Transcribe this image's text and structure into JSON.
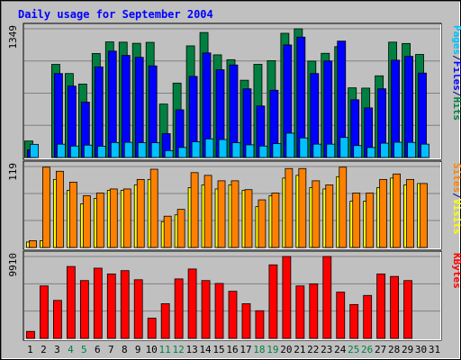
{
  "chart_data": {
    "type": "bar",
    "title": "Daily usage for September 2004",
    "x": [
      "1",
      "2",
      "3",
      "4",
      "5",
      "6",
      "7",
      "8",
      "9",
      "10",
      "11",
      "12",
      "13",
      "14",
      "15",
      "16",
      "17",
      "18",
      "19",
      "20",
      "21",
      "22",
      "23",
      "24",
      "25",
      "26",
      "27",
      "28",
      "29",
      "30",
      "31"
    ],
    "weekend_days": [
      "4",
      "5",
      "11",
      "12",
      "18",
      "19",
      "25",
      "26"
    ],
    "panels": [
      {
        "name": "hits-files-pages",
        "ymax_label": "1349",
        "ymax": 1349,
        "axis_labels": [
          {
            "text": "Pages",
            "color": "#00c0ff"
          },
          {
            "text": "/",
            "color": "#000080"
          },
          {
            "text": "Files",
            "color": "#0000ff"
          },
          {
            "text": "/",
            "color": "#000080"
          },
          {
            "text": "Hits",
            "color": "#008040"
          }
        ],
        "series": [
          {
            "name": "Hits",
            "color": "#008040",
            "values": [
              173,
              0,
              976,
              880,
              770,
              1090,
              1212,
              1209,
              1197,
              1207,
              560,
              780,
              1170,
              1310,
              1076,
              1025,
              810,
              977,
              1015,
              1302,
              1349,
              1010,
              1092,
              1162,
              730,
              727,
              856,
              1209,
              1195,
              1080,
              0
            ]
          },
          {
            "name": "Files",
            "color": "#0000ff",
            "values": [
              80,
              0,
              880,
              748,
              580,
              950,
              1115,
              1070,
              1050,
              960,
              250,
              500,
              850,
              1096,
              920,
              970,
              720,
              540,
              705,
              1180,
              1262,
              880,
              1012,
              1220,
              605,
              520,
              720,
              1020,
              1060,
              885,
              0
            ]
          },
          {
            "name": "Pages",
            "color": "#00c0ff",
            "values": [
              138,
              0,
              140,
              120,
              130,
              118,
              157,
              159,
              155,
              155,
              72,
              105,
              165,
              195,
              188,
              155,
              133,
              120,
              145,
              255,
              205,
              140,
              140,
              210,
              125,
              105,
              150,
              160,
              158,
              140,
              0
            ]
          }
        ]
      },
      {
        "name": "visits-sites",
        "ymax_label": "119",
        "ymax": 119,
        "axis_labels": [
          {
            "text": "Sites",
            "color": "#ff8000"
          },
          {
            "text": "/",
            "color": "#000080"
          },
          {
            "text": "Visits",
            "color": "#ffff00"
          }
        ],
        "series": [
          {
            "name": "Visits",
            "color": "#ffff00",
            "values": [
              8,
              10,
              100,
              84,
              64,
              72,
              84,
              84,
              92,
              100,
              38,
              48,
              88,
              92,
              86,
              92,
              84,
              60,
              76,
              102,
              106,
              88,
              86,
              104,
              68,
              68,
              88,
              102,
              92,
              94,
              0
            ]
          },
          {
            "name": "Sites",
            "color": "#ff8000",
            "values": [
              10,
              118,
              112,
              96,
              76,
              80,
              86,
              86,
              100,
              115,
              46,
              56,
              110,
              106,
              98,
              98,
              85,
              70,
              80,
              116,
              116,
              98,
              92,
              118,
              80,
              80,
              100,
              108,
              100,
              94,
              0
            ]
          }
        ]
      },
      {
        "name": "kbytes",
        "ymax_label": "9910",
        "ymax": 9910,
        "axis_labels": [
          {
            "text": "KBytes",
            "color": "#ff0000"
          }
        ],
        "series": [
          {
            "name": "KBytes",
            "color": "#ff0000",
            "values": [
              850,
              6350,
              4600,
              8700,
              7000,
              8500,
              7800,
              8200,
              7100,
              2450,
              4200,
              7200,
              8400,
              7000,
              6650,
              5700,
              4200,
              3350,
              8900,
              9910,
              6350,
              6600,
              9910,
              5600,
              4100,
              5200,
              7800,
              7500,
              7000,
              0,
              0
            ]
          }
        ]
      }
    ]
  }
}
